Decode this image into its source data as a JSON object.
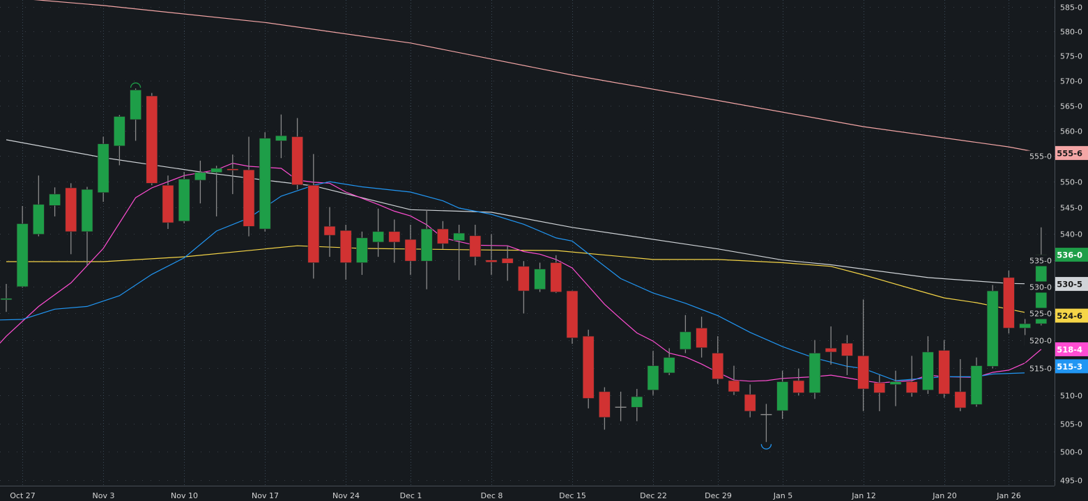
{
  "chart_data": {
    "type": "candlestick",
    "title": "",
    "yscale": "log",
    "ylim": [
      495,
      585
    ],
    "y_ticks": [
      "585-0",
      "580-0",
      "575-0",
      "570-0",
      "565-0",
      "560-0",
      "555-0",
      "550-0",
      "545-0",
      "540-0",
      "535-0",
      "530-0",
      "525-0",
      "520-0",
      "515-0",
      "510-0",
      "505-0",
      "500-0",
      "495-0"
    ],
    "y_tick_values": [
      585,
      580,
      575,
      570,
      565,
      560,
      555,
      550,
      545,
      540,
      535,
      530,
      525,
      520,
      515,
      510,
      505,
      500,
      495
    ],
    "x_ticks": [
      {
        "index": 1,
        "label": "Oct 27"
      },
      {
        "index": 6,
        "label": "Nov 3"
      },
      {
        "index": 11,
        "label": "Nov 10"
      },
      {
        "index": 16,
        "label": "Nov 17"
      },
      {
        "index": 21,
        "label": "Nov 24"
      },
      {
        "index": 25,
        "label": "Dec 1"
      },
      {
        "index": 30,
        "label": "Dec 8"
      },
      {
        "index": 35,
        "label": "Dec 15"
      },
      {
        "index": 40,
        "label": "Dec 22"
      },
      {
        "index": 44,
        "label": "Dec 29"
      },
      {
        "index": 48,
        "label": "Jan 5"
      },
      {
        "index": 53,
        "label": "Jan 12"
      },
      {
        "index": 58,
        "label": "Jan 20"
      },
      {
        "index": 62,
        "label": "Jan 26"
      }
    ],
    "ohlc_fields": [
      "open",
      "high",
      "low",
      "close"
    ],
    "candles": [
      [
        527.7,
        530.5,
        525.3,
        527.8
      ],
      [
        530,
        545.3,
        529.8,
        541.9
      ],
      [
        539.9,
        551.2,
        539.5,
        545.6
      ],
      [
        545.4,
        548.9,
        543.3,
        547.6
      ],
      [
        548.8,
        549.7,
        536.1,
        540.4
      ],
      [
        540.4,
        549,
        534,
        548.5
      ],
      [
        547.9,
        558.8,
        546.1,
        557.4
      ],
      [
        557,
        563.1,
        553.2,
        562.8
      ],
      [
        562.2,
        568.4,
        558,
        568.1
      ],
      [
        566.9,
        567.5,
        549.3,
        549.7
      ],
      [
        549.3,
        551.2,
        540.9,
        542.1
      ],
      [
        542.4,
        551.9,
        542,
        550.5
      ],
      [
        550.3,
        554.1,
        545.8,
        551.8
      ],
      [
        551.8,
        553.1,
        543.3,
        552.6
      ],
      [
        552.5,
        555.3,
        547.6,
        552.3
      ],
      [
        552.3,
        558.8,
        539.5,
        541.4
      ],
      [
        540.9,
        559.7,
        540.4,
        558.5
      ],
      [
        558,
        563.2,
        554.6,
        559
      ],
      [
        558.8,
        562.5,
        548.5,
        549.4
      ],
      [
        549.3,
        555.4,
        531.5,
        534.5
      ],
      [
        541.4,
        545.1,
        535.6,
        539.7
      ],
      [
        540.6,
        541.7,
        531.3,
        534.5
      ],
      [
        534.5,
        540.4,
        532.2,
        539.2
      ],
      [
        538.4,
        544.8,
        535.6,
        540.4
      ],
      [
        540.4,
        542.7,
        534.5,
        538.4
      ],
      [
        538.9,
        541.7,
        532.2,
        534.8
      ],
      [
        534.8,
        544.6,
        529.5,
        540.9
      ],
      [
        540.9,
        542.4,
        537.1,
        538.1
      ],
      [
        538.7,
        541.7,
        531.2,
        540.1
      ],
      [
        539.6,
        541.7,
        534,
        535.6
      ],
      [
        535,
        539.9,
        532.2,
        534.6
      ],
      [
        535.3,
        537.7,
        531.1,
        534.4
      ],
      [
        533.8,
        534.8,
        525,
        529.2
      ],
      [
        529.5,
        534.5,
        529,
        533.3
      ],
      [
        534.5,
        535.9,
        528.8,
        529
      ],
      [
        529.2,
        529.3,
        519.4,
        520.5
      ],
      [
        520.8,
        522,
        507.7,
        509.5
      ],
      [
        510.7,
        511.5,
        503.9,
        506.1
      ],
      [
        507.9,
        510.7,
        505.4,
        507.9
      ],
      [
        507.9,
        511.2,
        505.4,
        509.8
      ],
      [
        511,
        518.1,
        510.1,
        515.4
      ],
      [
        514.1,
        518.6,
        513.7,
        516.9
      ],
      [
        518.4,
        524.7,
        517.7,
        521.6
      ],
      [
        522.3,
        524.4,
        516.9,
        518.7
      ],
      [
        517.7,
        520.8,
        512.1,
        513
      ],
      [
        512.7,
        515.4,
        510.1,
        510.7
      ],
      [
        510.2,
        512,
        506.1,
        507.2
      ],
      [
        506.6,
        508.5,
        501.7,
        506.6
      ],
      [
        507.3,
        514.5,
        505.8,
        512.5
      ],
      [
        512.7,
        514.9,
        510,
        510.5
      ],
      [
        510.5,
        520.1,
        509.4,
        517.7
      ],
      [
        518.6,
        522.6,
        515.6,
        517.9
      ],
      [
        519.5,
        521,
        513.7,
        517.2
      ],
      [
        517.2,
        527.6,
        507.2,
        511.2
      ],
      [
        512.3,
        513.7,
        507.2,
        510.5
      ],
      [
        512,
        514.5,
        508.1,
        512.5
      ],
      [
        512.5,
        517.2,
        509.8,
        510.5
      ],
      [
        511,
        520.8,
        510.3,
        517.9
      ],
      [
        518.2,
        520.1,
        509.6,
        510.3
      ],
      [
        510.7,
        516.6,
        507.2,
        507.8
      ],
      [
        508.4,
        516.9,
        508,
        515.4
      ],
      [
        515.3,
        530.3,
        514.9,
        529.2
      ],
      [
        531.7,
        533,
        521.3,
        522.3
      ],
      [
        522.3,
        525.3,
        519.1,
        523.1
      ],
      [
        523.1,
        541.2,
        522.8,
        536.0
      ]
    ],
    "markers": [
      {
        "index": 8,
        "type": "high",
        "color": "#1e9e48"
      },
      {
        "index": 47,
        "type": "low",
        "color": "#2196f3"
      }
    ],
    "series": [
      {
        "name": "ma-salmon",
        "color": "#f4a6a6",
        "label": "555-6",
        "label_text_color": "#1a1a1a",
        "points": [
          [
            0,
            587
          ],
          [
            6,
            585.3
          ],
          [
            16,
            581.8
          ],
          [
            25,
            577.6
          ],
          [
            35,
            571.1
          ],
          [
            44,
            566
          ],
          [
            53,
            560.8
          ],
          [
            62,
            556.8
          ],
          [
            64,
            555.6
          ]
        ]
      },
      {
        "name": "ma-white",
        "color": "#d0d4d8",
        "label": "530-5",
        "label_text_color": "#1a1a1a",
        "points": [
          [
            0,
            558.2
          ],
          [
            6,
            554.7
          ],
          [
            12,
            551.9
          ],
          [
            16,
            550.3
          ],
          [
            19,
            549.2
          ],
          [
            25,
            544.6
          ],
          [
            30,
            544.1
          ],
          [
            35,
            541.2
          ],
          [
            44,
            537.1
          ],
          [
            48,
            535
          ],
          [
            51,
            534.1
          ],
          [
            57,
            531.7
          ],
          [
            62,
            530.6
          ],
          [
            64,
            530.5
          ]
        ]
      },
      {
        "name": "ma-yellow",
        "color": "#f5d547",
        "label": "524-6",
        "label_text_color": "#1a1a1a",
        "points": [
          [
            0,
            534.7
          ],
          [
            6,
            534.7
          ],
          [
            11,
            535.6
          ],
          [
            18,
            537.7
          ],
          [
            22,
            537.2
          ],
          [
            30,
            536.9
          ],
          [
            34,
            536.8
          ],
          [
            40,
            535.1
          ],
          [
            44,
            535.1
          ],
          [
            48,
            534.5
          ],
          [
            51,
            533.8
          ],
          [
            53,
            532.2
          ],
          [
            56,
            529.6
          ],
          [
            58,
            527.9
          ],
          [
            60,
            527
          ],
          [
            62,
            525.8
          ],
          [
            64,
            524.6
          ]
        ]
      },
      {
        "name": "ma-magenta",
        "color": "#ff4dd2",
        "label": "518-4",
        "label_text_color": "#ffffff",
        "points": [
          [
            -0.4,
            519.5
          ],
          [
            0,
            520.8
          ],
          [
            2,
            526.3
          ],
          [
            4,
            530.7
          ],
          [
            6,
            537.2
          ],
          [
            8,
            546.9
          ],
          [
            9,
            548.8
          ],
          [
            11,
            551.2
          ],
          [
            13,
            552.3
          ],
          [
            14,
            553.6
          ],
          [
            15,
            553
          ],
          [
            17,
            552.6
          ],
          [
            18,
            550.3
          ],
          [
            19,
            549.9
          ],
          [
            20,
            549.7
          ],
          [
            21,
            548
          ],
          [
            23,
            545.6
          ],
          [
            24,
            544.3
          ],
          [
            25,
            543.4
          ],
          [
            26,
            541.7
          ],
          [
            27,
            539.2
          ],
          [
            29,
            537.8
          ],
          [
            31,
            537.7
          ],
          [
            32,
            536.6
          ],
          [
            33,
            536.1
          ],
          [
            34,
            535.1
          ],
          [
            35,
            533.5
          ],
          [
            36,
            530.1
          ],
          [
            37,
            526.7
          ],
          [
            38,
            524
          ],
          [
            39,
            521.4
          ],
          [
            40,
            519.9
          ],
          [
            41,
            517.7
          ],
          [
            42,
            517
          ],
          [
            43,
            515.7
          ],
          [
            44,
            514.2
          ],
          [
            45,
            512.8
          ],
          [
            46,
            512.6
          ],
          [
            47,
            512.7
          ],
          [
            48,
            513.1
          ],
          [
            50,
            513.4
          ],
          [
            51,
            513.7
          ],
          [
            52,
            513.2
          ],
          [
            53,
            512.7
          ],
          [
            54,
            512.3
          ],
          [
            56,
            512.7
          ],
          [
            57,
            513.7
          ],
          [
            58,
            513.4
          ],
          [
            60,
            513.3
          ],
          [
            61,
            514.2
          ],
          [
            62,
            514.6
          ],
          [
            63,
            515.9
          ],
          [
            64,
            518.4
          ]
        ]
      },
      {
        "name": "ma-blue",
        "color": "#2196f3",
        "label": "515-3",
        "label_text_color": "#ffffff",
        "points": [
          [
            -0.4,
            523.8
          ],
          [
            1,
            523.9
          ],
          [
            3,
            525.8
          ],
          [
            5,
            526.3
          ],
          [
            7,
            528.3
          ],
          [
            9,
            532.3
          ],
          [
            11,
            535.4
          ],
          [
            13,
            540.5
          ],
          [
            15,
            543
          ],
          [
            17,
            547.2
          ],
          [
            19,
            549.3
          ],
          [
            20,
            550
          ],
          [
            22,
            549
          ],
          [
            25,
            548
          ],
          [
            27,
            546.3
          ],
          [
            28,
            544.9
          ],
          [
            30,
            543.7
          ],
          [
            32,
            541.8
          ],
          [
            34,
            539.2
          ],
          [
            35,
            538.6
          ],
          [
            36,
            536.2
          ],
          [
            38,
            531.5
          ],
          [
            40,
            528.8
          ],
          [
            42,
            526.9
          ],
          [
            44,
            524.6
          ],
          [
            46,
            521.5
          ],
          [
            48,
            518.9
          ],
          [
            50,
            516.8
          ],
          [
            52,
            515.3
          ],
          [
            53,
            514.9
          ],
          [
            55,
            512.7
          ],
          [
            58,
            513.4
          ],
          [
            60,
            513.4
          ],
          [
            61,
            513.9
          ],
          [
            63,
            514.1
          ],
          [
            64,
            515.3
          ]
        ]
      }
    ],
    "last_price": {
      "label": "536-0",
      "color": "#1e9e48",
      "text_color": "#ffffff"
    },
    "up_color": "#1e9e48",
    "down_color": "#d13232",
    "doji_color": "#8a8a8a",
    "grid": true,
    "legend": "none"
  }
}
